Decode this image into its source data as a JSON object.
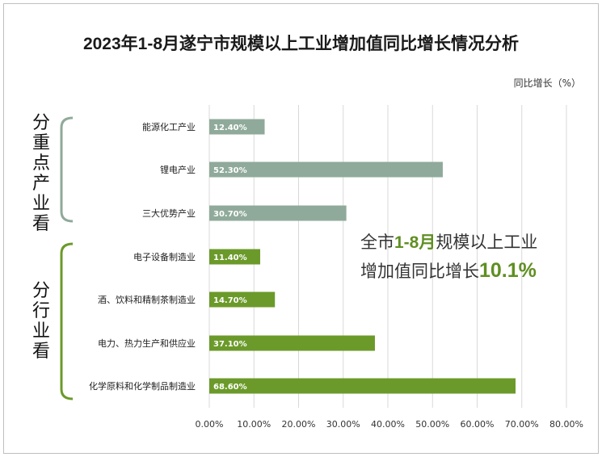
{
  "title": "2023年1-8月遂宁市规模以上工业增加值同比增长情况分析",
  "unit_label": "同比增长（%）",
  "group_labels": {
    "key_industries": "分重点产业看",
    "by_sector": "分行业看"
  },
  "highlight": {
    "prefix": "全市",
    "period": "1-8月",
    "middle": "规模以上工业",
    "line2_prefix": "增加值同比增长",
    "value": "10.1%"
  },
  "colors": {
    "key_industry_bar": "#8faa9a",
    "sector_bar": "#6b9a2a",
    "bracket_key": "#8faa9a",
    "bracket_sector": "#6b9a2a",
    "grid": "#d9d9d9"
  },
  "chart_data": {
    "type": "bar",
    "orientation": "horizontal",
    "categories": [
      "能源化工产业",
      "锂电产业",
      "三大优势产业",
      "电子设备制造业",
      "酒、饮料和精制茶制造业",
      "电力、热力生产和供应业",
      "化学原料和化学制品制造业"
    ],
    "values": [
      12.4,
      52.3,
      30.7,
      11.4,
      14.7,
      37.1,
      68.6
    ],
    "value_labels": [
      "12.40%",
      "52.30%",
      "30.70%",
      "11.40%",
      "14.70%",
      "37.10%",
      "68.60%"
    ],
    "groups": [
      "key",
      "key",
      "key",
      "sector",
      "sector",
      "sector",
      "sector"
    ],
    "xlim": [
      0,
      80
    ],
    "x_ticks": [
      "0.00%",
      "10.00%",
      "20.00%",
      "30.00%",
      "40.00%",
      "50.00%",
      "60.00%",
      "70.00%",
      "80.00%"
    ],
    "grid": true
  }
}
